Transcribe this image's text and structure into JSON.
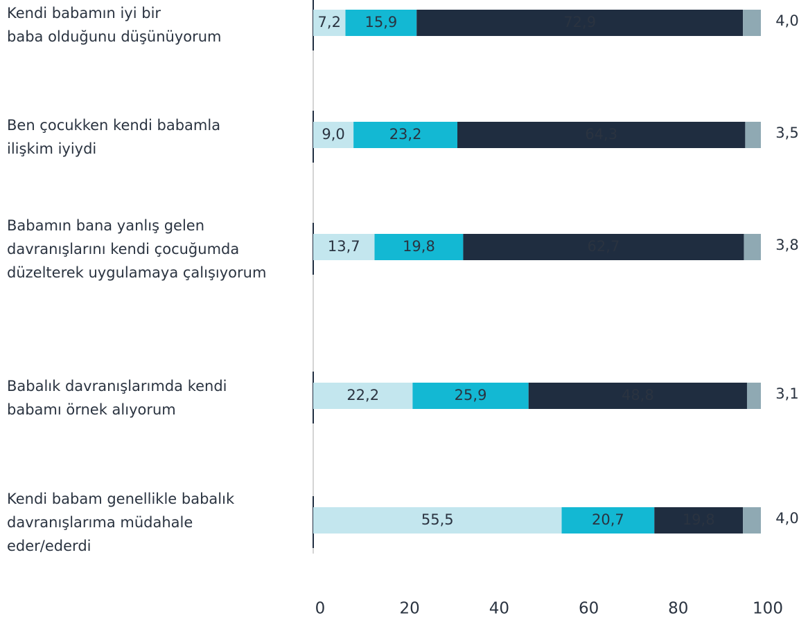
{
  "chart_data": {
    "type": "stacked-bar-horizontal",
    "categories": [
      "Kendi babamın iyi bir\nbaba olduğunu düşünüyorum",
      "Ben çocukken kendi babamla\nilişkim iyiydi",
      "Babamın bana yanlış gelen\ndavranışlarını kendi çocuğumda\ndüzelterek uygulamaya çalışıyorum",
      "Babalık davranışlarımda kendi\nbabamı örnek alıyorum",
      "Kendi babam genellikle babalık\ndavranışlarıma müdahale\neder/ederdi"
    ],
    "series": [
      {
        "color": "#c3e6ee",
        "values": [
          7.2,
          9.0,
          13.7,
          22.2,
          55.5
        ],
        "value_labels": [
          "7,2",
          "9,0",
          "13,7",
          "22,2",
          "55,5"
        ]
      },
      {
        "color": "#13b8d3",
        "values": [
          15.9,
          23.2,
          19.8,
          25.9,
          20.7
        ],
        "value_labels": [
          "15,9",
          "23,2",
          "19,8",
          "25,9",
          "20,7"
        ]
      },
      {
        "color": "#1f2d40",
        "values": [
          72.9,
          64.3,
          62.7,
          48.8,
          19.8
        ],
        "value_labels": [
          "72,9",
          "64,3",
          "62,7",
          "48,8",
          "19,8"
        ]
      },
      {
        "color": "#8fa9b3",
        "values": [
          4.0,
          3.5,
          3.8,
          3.1,
          4.0
        ],
        "value_labels": [
          "4,0",
          "3,5",
          "3,8",
          "3,1",
          "4,0"
        ]
      }
    ],
    "xlim": [
      0,
      100
    ],
    "xticks": [
      0,
      20,
      40,
      60,
      80,
      100
    ]
  }
}
